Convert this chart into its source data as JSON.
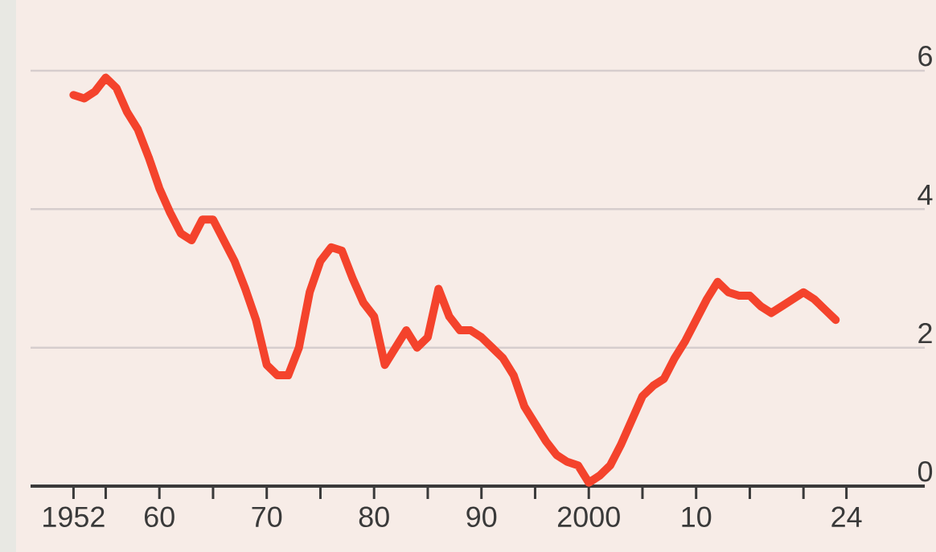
{
  "chart_data": {
    "type": "line",
    "x": [
      1952,
      1953,
      1954,
      1955,
      1956,
      1957,
      1958,
      1959,
      1960,
      1961,
      1962,
      1963,
      1964,
      1965,
      1966,
      1967,
      1968,
      1969,
      1970,
      1971,
      1972,
      1973,
      1974,
      1975,
      1976,
      1977,
      1978,
      1979,
      1980,
      1981,
      1982,
      1983,
      1984,
      1985,
      1986,
      1987,
      1988,
      1989,
      1990,
      1991,
      1992,
      1993,
      1994,
      1995,
      1996,
      1997,
      1998,
      1999,
      2000,
      2001,
      2002,
      2003,
      2004,
      2005,
      2006,
      2007,
      2008,
      2009,
      2010,
      2011,
      2012,
      2013,
      2014,
      2015,
      2016,
      2017,
      2018,
      2019,
      2020,
      2021,
      2022,
      2023
    ],
    "series": [
      {
        "color": "#f4432c",
        "values": [
          5.65,
          5.6,
          5.7,
          5.9,
          5.75,
          5.4,
          5.15,
          4.75,
          4.3,
          3.95,
          3.65,
          3.55,
          3.85,
          3.85,
          3.55,
          3.25,
          2.85,
          2.4,
          1.75,
          1.6,
          1.6,
          2.0,
          2.8,
          3.25,
          3.45,
          3.4,
          3.0,
          2.65,
          2.45,
          1.75,
          2.0,
          2.25,
          2.0,
          2.15,
          2.85,
          2.45,
          2.25,
          2.25,
          2.15,
          2.0,
          1.85,
          1.6,
          1.15,
          0.9,
          0.65,
          0.45,
          0.35,
          0.3,
          0.05,
          0.15,
          0.3,
          0.6,
          0.95,
          1.3,
          1.45,
          1.55,
          1.85,
          2.1,
          2.4,
          2.7,
          2.95,
          2.8,
          2.75,
          2.75,
          2.6,
          2.5,
          2.6,
          2.7,
          2.8,
          2.7,
          2.55,
          2.4
        ]
      }
    ],
    "xlim": [
      1948,
      2031.3
    ],
    "ylim": [
      0,
      6
    ],
    "xticks": [
      1952,
      {
        "value": 1955,
        "label": null
      },
      {
        "value": 1960,
        "label": "60"
      },
      {
        "value": 1965,
        "label": null
      },
      {
        "value": 1970,
        "label": "70"
      },
      {
        "value": 1975,
        "label": null
      },
      {
        "value": 1980,
        "label": "80"
      },
      {
        "value": 1985,
        "label": null
      },
      {
        "value": 1990,
        "label": "90"
      },
      {
        "value": 1995,
        "label": null
      },
      2000,
      {
        "value": 2005,
        "label": null
      },
      {
        "value": 2010,
        "label": "10"
      },
      {
        "value": 2015,
        "label": null
      },
      {
        "value": 2020,
        "label": null
      },
      {
        "value": 2024,
        "label": "24"
      }
    ],
    "yticks": [
      0,
      2,
      4,
      6
    ],
    "grid": "y"
  }
}
